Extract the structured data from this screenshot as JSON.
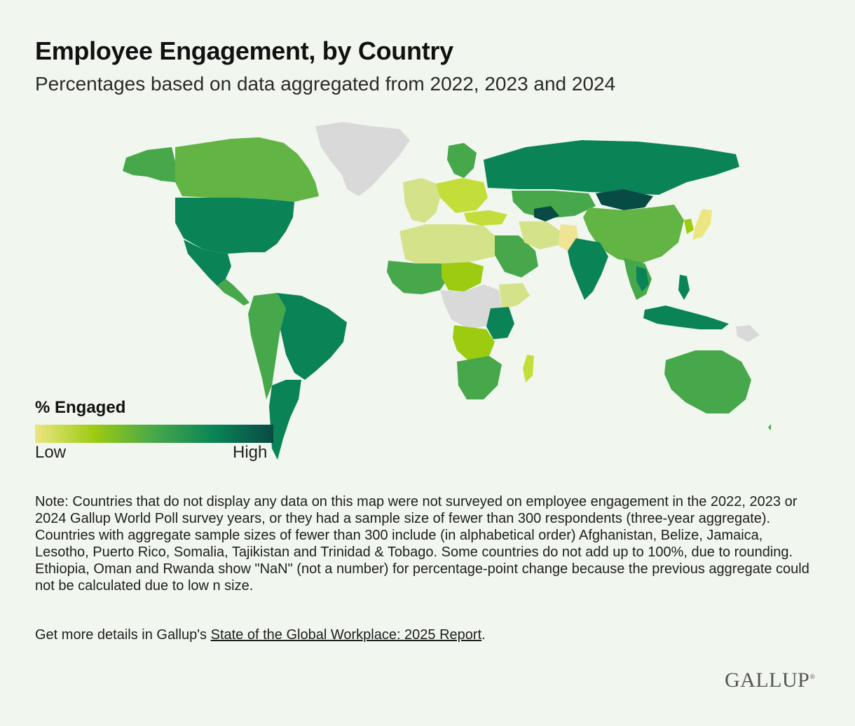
{
  "title": "Employee Engagement, by Country",
  "subtitle": "Percentages based on data aggregated from 2022, 2023 and 2024",
  "legend": {
    "title": "% Engaged",
    "low_label": "Low",
    "high_label": "High",
    "colors": [
      "#ece682",
      "#9ccb10",
      "#46a84a",
      "#0a8456",
      "#084a44"
    ]
  },
  "map": {
    "no_data_color": "#d9d9d9",
    "ocean_color": "#f1f7ef"
  },
  "note": "Note: Countries that do not display any data on this map were not surveyed on employee engagement in the 2022, 2023 or 2024 Gallup World Poll survey years, or they had a sample size of fewer than 300 respondents (three-year aggregate). Countries with aggregate sample sizes of fewer than 300 include (in alphabetical order) Afghanistan, Belize, Jamaica, Lesotho, Puerto Rico, Somalia, Tajikistan and Trinidad & Tobago. Some countries do not add up to 100%, due to rounding. Ethiopia, Oman and Rwanda show \"NaN\" (not a number) for percentage-point change because the previous aggregate could not be calculated due to low n size.",
  "details": {
    "prefix": "Get more details in Gallup's ",
    "link_text": "State of the Global Workplace: 2025 Report",
    "suffix": "."
  },
  "brand": "GALLUP"
}
